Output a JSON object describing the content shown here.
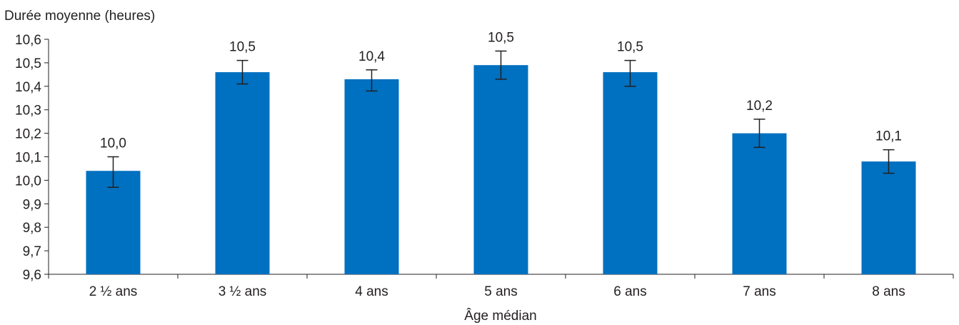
{
  "chart_data": {
    "type": "bar",
    "ylabel": "Durée moyenne (heures)",
    "xlabel": "Âge médian",
    "categories": [
      "2 ½ ans",
      "3 ½ ans",
      "4 ans",
      "5 ans",
      "6 ans",
      "7 ans",
      "8 ans"
    ],
    "values": [
      10.04,
      10.46,
      10.43,
      10.49,
      10.46,
      10.2,
      10.08
    ],
    "error_low": [
      9.97,
      10.41,
      10.38,
      10.43,
      10.4,
      10.14,
      10.03
    ],
    "error_high": [
      10.1,
      10.51,
      10.47,
      10.55,
      10.51,
      10.26,
      10.13
    ],
    "data_labels": [
      "10,0",
      "10,5",
      "10,4",
      "10,5",
      "10,5",
      "10,2",
      "10,1"
    ],
    "y_ticks": [
      "9,6",
      "9,7",
      "9,8",
      "9,9",
      "10,0",
      "10,1",
      "10,2",
      "10,3",
      "10,4",
      "10,5",
      "10,6"
    ],
    "ylim": [
      9.6,
      10.6
    ],
    "grid": false,
    "legend": "none",
    "bar_color": "#0070c0"
  }
}
